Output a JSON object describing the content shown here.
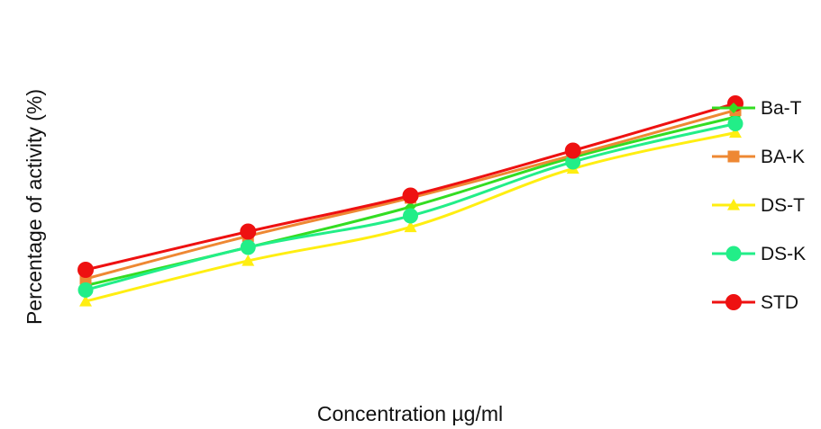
{
  "chart_data": {
    "type": "line",
    "title": "",
    "xlabel": "Concentration µg/ml",
    "ylabel": "Percentage of activity (%)",
    "x": [
      1,
      2,
      3,
      4,
      5
    ],
    "ylim": [
      0,
      100
    ],
    "grid": false,
    "legend_position": "right",
    "series": [
      {
        "name": "Ba-T",
        "color": "#33dd22",
        "marker": "diamond",
        "values": [
          33.0,
          50.0,
          68.0,
          90.0,
          108.0
        ]
      },
      {
        "name": "BA-K",
        "color": "#ee8833",
        "marker": "square",
        "values": [
          36.0,
          55.0,
          72.0,
          91.0,
          111.0
        ]
      },
      {
        "name": "DS-T",
        "color": "#ffee11",
        "marker": "triangle",
        "values": [
          26.0,
          44.0,
          59.0,
          85.0,
          101.0
        ]
      },
      {
        "name": "DS-K",
        "color": "#22ee88",
        "marker": "circle",
        "values": [
          31.0,
          50.0,
          64.0,
          88.0,
          105.0
        ]
      },
      {
        "name": "STD",
        "color": "#ee1111",
        "marker": "circle",
        "values": [
          40.0,
          57.0,
          73.0,
          93.0,
          114.0
        ]
      }
    ]
  }
}
